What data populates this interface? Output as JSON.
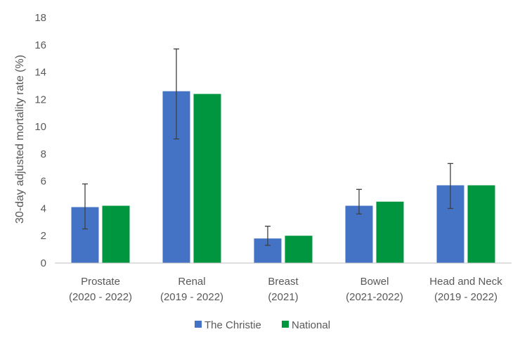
{
  "chart_data": {
    "type": "bar",
    "title": "",
    "ylabel": "30-day adjusted mortality rate (%)",
    "xlabel": "",
    "ylim": [
      0,
      18
    ],
    "yticks": [
      0,
      2,
      4,
      6,
      8,
      10,
      12,
      14,
      16,
      18
    ],
    "grid": false,
    "legend_position": "bottom",
    "categories": [
      [
        "Prostate",
        "(2020 - 2022)"
      ],
      [
        "Renal",
        "(2019 - 2022)"
      ],
      [
        "Breast",
        "(2021)"
      ],
      [
        "Bowel",
        "(2021-2022)"
      ],
      [
        "Head and Neck",
        "(2019 - 2022)"
      ]
    ],
    "series": [
      {
        "name": "The Christie",
        "color": "#4472C4",
        "values": [
          4.1,
          12.6,
          1.8,
          4.2,
          5.7
        ],
        "error_low": [
          2.5,
          9.1,
          1.3,
          3.6,
          4.0
        ],
        "error_high": [
          5.8,
          15.7,
          2.7,
          5.4,
          7.3
        ]
      },
      {
        "name": "National",
        "color": "#00963F",
        "values": [
          4.2,
          12.4,
          2.0,
          4.5,
          5.7
        ]
      }
    ]
  }
}
